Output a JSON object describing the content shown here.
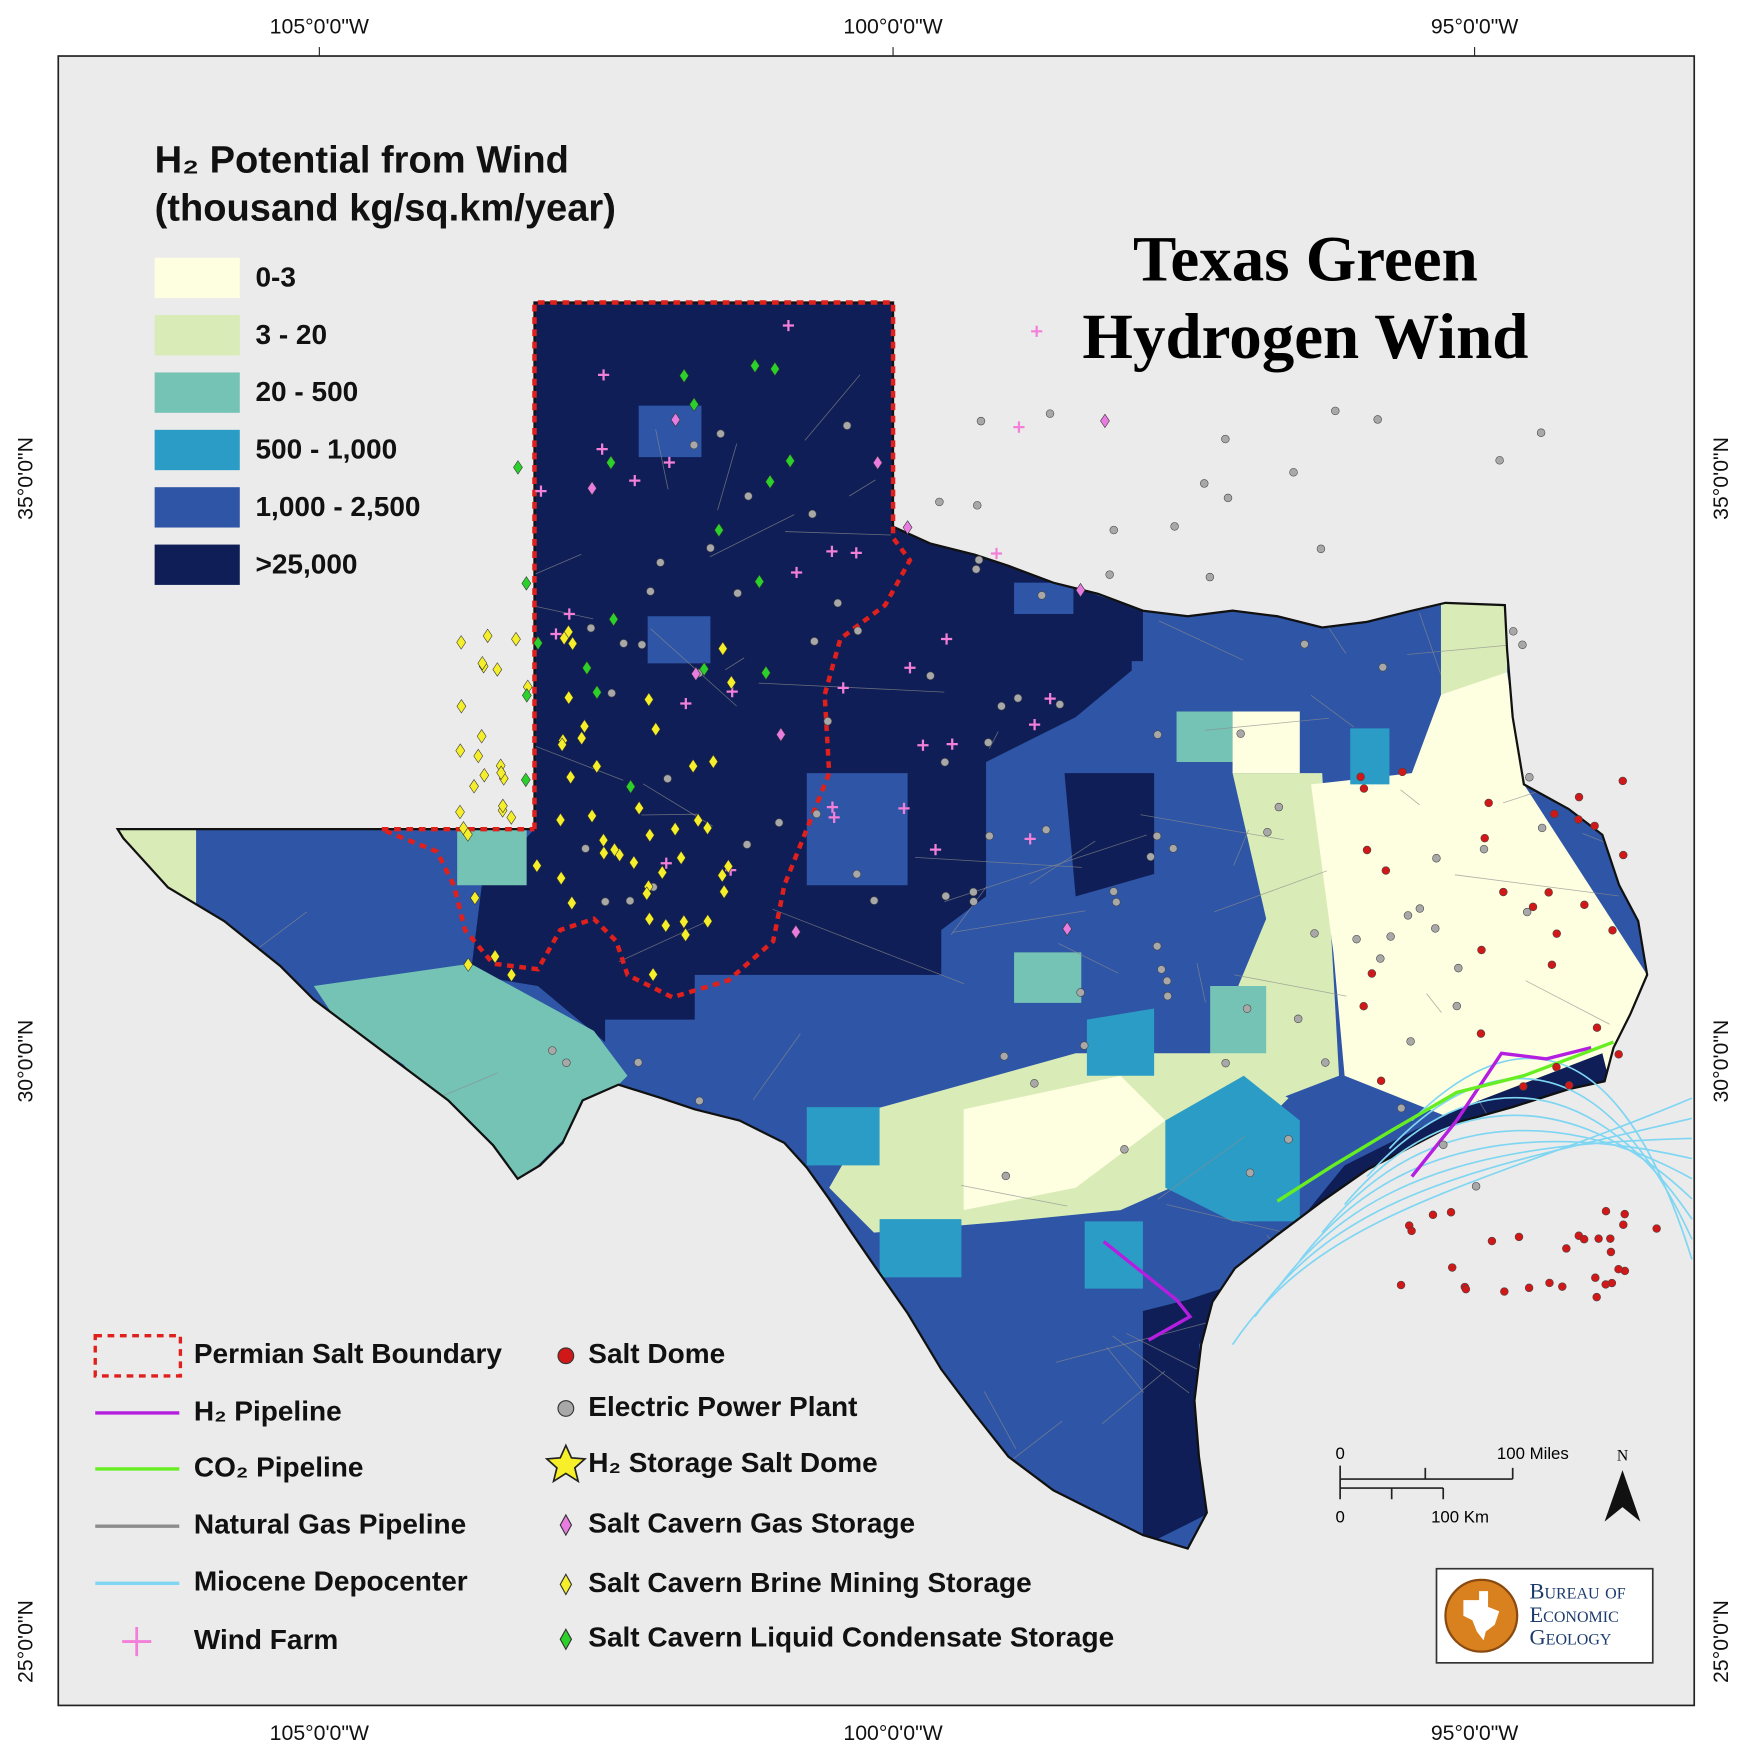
{
  "title_lines": [
    "Texas Green",
    "Hydrogen Wind"
  ],
  "potential_legend": {
    "title": "H₂ Potential from Wind",
    "subtitle": "(thousand kg/sq.km/year)",
    "classes": [
      {
        "label": "0-3",
        "color": "#fefee0"
      },
      {
        "label": "3 - 20",
        "color": "#d9ebb6"
      },
      {
        "label": "20 - 500",
        "color": "#74c3b4"
      },
      {
        "label": "500 - 1,000",
        "color": "#2b9cc6"
      },
      {
        "label": "1,000 - 2,500",
        "color": "#2e55a6"
      },
      {
        "label": ">25,000",
        "color": "#0f1e56"
      }
    ]
  },
  "feature_legend": [
    {
      "label": "Permian Salt Boundary",
      "symbol": "dashed-box",
      "color": "#e0201c"
    },
    {
      "label": "H₂ Pipeline",
      "symbol": "line",
      "color": "#b41ee0"
    },
    {
      "label": "CO₂ Pipeline",
      "symbol": "line",
      "color": "#66ee22"
    },
    {
      "label": "Natural Gas Pipeline",
      "symbol": "line",
      "color": "#8c8c8c"
    },
    {
      "label": "Miocene Depocenter",
      "symbol": "line",
      "color": "#7fd6f2"
    },
    {
      "label": "Wind Farm",
      "symbol": "plus",
      "color": "#f37fd8"
    },
    {
      "label": "Salt Dome",
      "symbol": "dot",
      "color": "#d01818"
    },
    {
      "label": "Electric Power Plant",
      "symbol": "dot",
      "color": "#a8a8a8"
    },
    {
      "label": "H₂ Storage Salt Dome",
      "symbol": "star",
      "color": "#f7ef2a"
    },
    {
      "label": "Salt Cavern Gas Storage",
      "symbol": "diamond",
      "color": "#e87ce0"
    },
    {
      "label": "Salt Cavern Brine Mining Storage",
      "symbol": "diamond",
      "color": "#f5ee2a"
    },
    {
      "label": "Salt Cavern Liquid Condensate Storage",
      "symbol": "diamond",
      "color": "#2bd02b"
    }
  ],
  "graticule": {
    "longitudes": [
      "105°0'0\"W",
      "100°0'0\"W",
      "95°0'0\"W"
    ],
    "latitudes": [
      "35°0'0\"N",
      "30°0'0\"N",
      "25°0'0\"N"
    ]
  },
  "scale_bar": {
    "miles_labels": [
      "0",
      "100 Miles"
    ],
    "km_labels": [
      "0",
      "100 Km"
    ],
    "north": "N"
  },
  "logo": {
    "lines": [
      "Bureau of",
      "Economic",
      "Geology"
    ]
  }
}
